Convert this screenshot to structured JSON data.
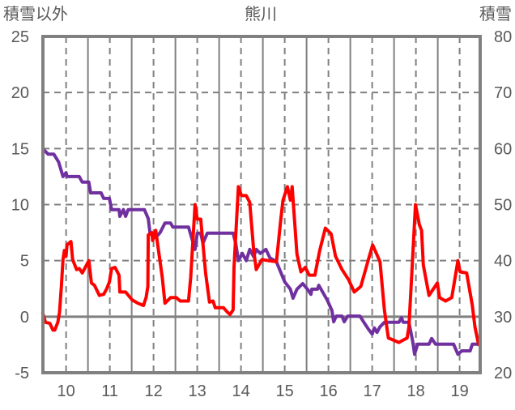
{
  "chart_data": {
    "type": "line",
    "title": "熊川",
    "ylabel_left": "積雪以外",
    "ylabel_right": "積雪",
    "xlim": [
      9.47,
      19.47
    ],
    "ylim_left": [
      -5,
      25
    ],
    "ylim_right": [
      20,
      80
    ],
    "x_ticks": [
      "10",
      "11",
      "12",
      "13",
      "14",
      "15",
      "16",
      "17",
      "18",
      "19"
    ],
    "y_ticks_left": [
      "25",
      "20",
      "15",
      "10",
      "5",
      "0",
      "-5"
    ],
    "y_ticks_right": [
      "80",
      "70",
      "60",
      "50",
      "40",
      "30",
      "20"
    ],
    "grid": true,
    "colors": {
      "left_series": "#ff0000",
      "right_series": "#7030a0",
      "frame": "#808080"
    },
    "series": [
      {
        "name": "積雪以外",
        "axis": "left",
        "points": [
          [
            9.46,
            0.4
          ],
          [
            9.53,
            -0.5
          ],
          [
            9.63,
            -0.6
          ],
          [
            9.7,
            -1.2
          ],
          [
            9.74,
            -1.2
          ],
          [
            9.81,
            -0.5
          ],
          [
            9.85,
            0.4
          ],
          [
            9.89,
            2.6
          ],
          [
            9.93,
            5.1
          ],
          [
            9.96,
            5.9
          ],
          [
            10.0,
            5.4
          ],
          [
            10.02,
            6.4
          ],
          [
            10.11,
            6.7
          ],
          [
            10.15,
            5.1
          ],
          [
            10.24,
            4.2
          ],
          [
            10.3,
            4.3
          ],
          [
            10.37,
            3.9
          ],
          [
            10.52,
            5.0
          ],
          [
            10.58,
            3.0
          ],
          [
            10.65,
            2.8
          ],
          [
            10.76,
            1.9
          ],
          [
            10.86,
            2.0
          ],
          [
            10.93,
            2.5
          ],
          [
            10.99,
            3.1
          ],
          [
            11.04,
            4.3
          ],
          [
            11.12,
            4.4
          ],
          [
            11.21,
            3.7
          ],
          [
            11.23,
            2.2
          ],
          [
            11.36,
            2.2
          ],
          [
            11.51,
            1.5
          ],
          [
            11.64,
            1.2
          ],
          [
            11.77,
            1.0
          ],
          [
            11.83,
            1.7
          ],
          [
            11.87,
            2.7
          ],
          [
            11.88,
            7.3
          ],
          [
            11.96,
            7.5
          ],
          [
            11.98,
            6.8
          ],
          [
            12.05,
            7.7
          ],
          [
            12.2,
            3.5
          ],
          [
            12.26,
            1.2
          ],
          [
            12.39,
            1.7
          ],
          [
            12.52,
            1.7
          ],
          [
            12.61,
            1.4
          ],
          [
            12.8,
            1.4
          ],
          [
            12.85,
            3.5
          ],
          [
            12.95,
            10.0
          ],
          [
            13.0,
            8.7
          ],
          [
            13.08,
            8.7
          ],
          [
            13.19,
            3.9
          ],
          [
            13.28,
            1.3
          ],
          [
            13.36,
            1.4
          ],
          [
            13.41,
            0.8
          ],
          [
            13.6,
            0.8
          ],
          [
            13.69,
            0.4
          ],
          [
            13.75,
            0.2
          ],
          [
            13.82,
            0.6
          ],
          [
            13.84,
            4.4
          ],
          [
            13.94,
            11.6
          ],
          [
            14.01,
            10.8
          ],
          [
            14.12,
            10.8
          ],
          [
            14.2,
            10.2
          ],
          [
            14.29,
            5.9
          ],
          [
            14.35,
            4.2
          ],
          [
            14.48,
            5.1
          ],
          [
            14.63,
            5.0
          ],
          [
            14.81,
            4.9
          ],
          [
            14.91,
            8.7
          ],
          [
            14.96,
            10.4
          ],
          [
            15.06,
            11.6
          ],
          [
            15.13,
            10.4
          ],
          [
            15.17,
            11.6
          ],
          [
            15.28,
            5.6
          ],
          [
            15.37,
            4.0
          ],
          [
            15.47,
            4.4
          ],
          [
            15.56,
            3.7
          ],
          [
            15.69,
            3.7
          ],
          [
            15.8,
            5.9
          ],
          [
            15.93,
            7.9
          ],
          [
            16.06,
            7.4
          ],
          [
            16.16,
            5.4
          ],
          [
            16.31,
            4.2
          ],
          [
            16.46,
            3.3
          ],
          [
            16.59,
            2.2
          ],
          [
            16.74,
            2.7
          ],
          [
            16.9,
            4.9
          ],
          [
            17.01,
            6.4
          ],
          [
            17.18,
            4.9
          ],
          [
            17.28,
            0.6
          ],
          [
            17.37,
            -1.9
          ],
          [
            17.61,
            -2.3
          ],
          [
            17.8,
            -1.9
          ],
          [
            17.84,
            -0.9
          ],
          [
            17.89,
            2.7
          ],
          [
            17.99,
            10.0
          ],
          [
            18.08,
            8.2
          ],
          [
            18.13,
            7.7
          ],
          [
            18.17,
            4.6
          ],
          [
            18.3,
            1.9
          ],
          [
            18.49,
            3.0
          ],
          [
            18.54,
            1.7
          ],
          [
            18.68,
            1.4
          ],
          [
            18.82,
            1.7
          ],
          [
            18.96,
            5.0
          ],
          [
            19.01,
            4.0
          ],
          [
            19.16,
            3.9
          ],
          [
            19.29,
            1.0
          ],
          [
            19.35,
            -0.9
          ],
          [
            19.44,
            -2.6
          ]
        ]
      },
      {
        "name": "積雪",
        "axis": "right",
        "points": [
          [
            9.46,
            60.0
          ],
          [
            9.59,
            59.0
          ],
          [
            9.72,
            59.0
          ],
          [
            9.83,
            57.6
          ],
          [
            9.93,
            55.0
          ],
          [
            10.0,
            55.7
          ],
          [
            10.02,
            55.0
          ],
          [
            10.3,
            55.0
          ],
          [
            10.37,
            54.0
          ],
          [
            10.52,
            54.0
          ],
          [
            10.56,
            52.1
          ],
          [
            10.8,
            52.1
          ],
          [
            10.86,
            51.1
          ],
          [
            10.99,
            51.1
          ],
          [
            11.04,
            49.1
          ],
          [
            11.21,
            49.1
          ],
          [
            11.23,
            47.9
          ],
          [
            11.31,
            49.1
          ],
          [
            11.36,
            47.9
          ],
          [
            11.42,
            49.1
          ],
          [
            11.79,
            49.1
          ],
          [
            11.88,
            47.5
          ],
          [
            11.92,
            44.9
          ],
          [
            12.05,
            44.1
          ],
          [
            12.15,
            45.0
          ],
          [
            12.26,
            46.7
          ],
          [
            12.39,
            46.7
          ],
          [
            12.44,
            46.0
          ],
          [
            12.8,
            46.0
          ],
          [
            12.89,
            43.6
          ],
          [
            12.95,
            42.0
          ],
          [
            13.0,
            44.9
          ],
          [
            13.08,
            44.9
          ],
          [
            13.13,
            43.1
          ],
          [
            13.23,
            44.9
          ],
          [
            13.82,
            44.9
          ],
          [
            13.88,
            43.1
          ],
          [
            13.94,
            40.0
          ],
          [
            14.03,
            41.3
          ],
          [
            14.12,
            40.0
          ],
          [
            14.2,
            42.0
          ],
          [
            14.29,
            40.7
          ],
          [
            14.35,
            42.0
          ],
          [
            14.44,
            41.3
          ],
          [
            14.57,
            42.0
          ],
          [
            14.66,
            40.5
          ],
          [
            14.81,
            39.8
          ],
          [
            15.0,
            36.2
          ],
          [
            15.13,
            34.9
          ],
          [
            15.19,
            33.3
          ],
          [
            15.28,
            34.9
          ],
          [
            15.41,
            35.9
          ],
          [
            15.52,
            34.9
          ],
          [
            15.6,
            34.0
          ],
          [
            15.62,
            34.9
          ],
          [
            15.75,
            34.9
          ],
          [
            15.78,
            35.6
          ],
          [
            15.97,
            33.0
          ],
          [
            16.08,
            31.1
          ],
          [
            16.12,
            29.1
          ],
          [
            16.18,
            30.1
          ],
          [
            16.31,
            30.1
          ],
          [
            16.36,
            29.1
          ],
          [
            16.44,
            30.1
          ],
          [
            16.72,
            30.1
          ],
          [
            16.81,
            29.0
          ],
          [
            16.92,
            27.7
          ],
          [
            17.0,
            26.9
          ],
          [
            17.05,
            28.0
          ],
          [
            17.11,
            27.2
          ],
          [
            17.18,
            28.2
          ],
          [
            17.28,
            29.0
          ],
          [
            17.61,
            29.0
          ],
          [
            17.67,
            29.8
          ],
          [
            17.71,
            29.0
          ],
          [
            17.84,
            29.0
          ],
          [
            17.93,
            25.5
          ],
          [
            17.97,
            23.3
          ],
          [
            18.04,
            25.1
          ],
          [
            18.3,
            25.1
          ],
          [
            18.36,
            26.1
          ],
          [
            18.45,
            25.1
          ],
          [
            18.86,
            25.1
          ],
          [
            18.96,
            23.3
          ],
          [
            19.05,
            23.9
          ],
          [
            19.24,
            23.9
          ],
          [
            19.29,
            25.1
          ],
          [
            19.44,
            25.1
          ]
        ]
      }
    ]
  }
}
